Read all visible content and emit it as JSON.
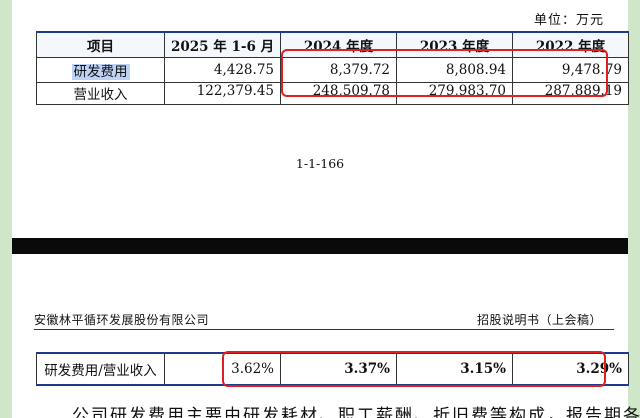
{
  "unit_label": "单位：万元",
  "table_top": {
    "headers": [
      "项目",
      "2025 年 1-6 月",
      "2024 年度",
      "2023 年度",
      "2022 年度"
    ],
    "rows": [
      {
        "label": "研发费用",
        "values": [
          "4,428.75",
          "8,379.72",
          "8,808.94",
          "9,478.79"
        ]
      },
      {
        "label": "营业收入",
        "values": [
          "122,379.45",
          "248,509.78",
          "279,983.70",
          "287,889.19"
        ]
      }
    ]
  },
  "page_number": "1-1-166",
  "doc_header": {
    "company": "安徽林平循环发展股份有限公司",
    "doc_title": "招股说明书（上会稿）"
  },
  "table_bottom": {
    "label": "研发费用/营业收入",
    "values": [
      "3.62%",
      "3.37%",
      "3.15%",
      "3.29%"
    ]
  },
  "cut_text": "公司研发费用主要由研发耗材、职工薪酬、折旧费等构成，报告期各期",
  "colors": {
    "highlight": "#e02020",
    "background": "#cfe6c8",
    "rule": "#1f3a8a"
  }
}
